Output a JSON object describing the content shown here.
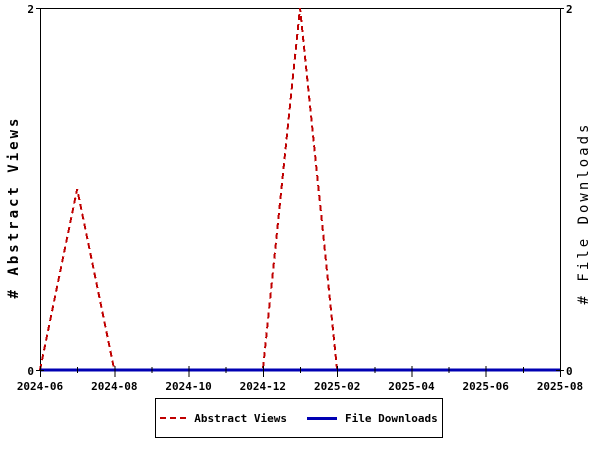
{
  "chart_data": {
    "type": "line",
    "title": "",
    "ylabel_left": "# Abstract Views",
    "ylabel_right": "# File Downloads",
    "ylim": [
      0,
      2
    ],
    "y_ticks": [
      0,
      2
    ],
    "y_tick_labels": [
      "0",
      "2"
    ],
    "x": [
      "2024-06",
      "2024-07",
      "2024-08",
      "2024-09",
      "2024-10",
      "2024-11",
      "2024-12",
      "2025-01",
      "2025-02",
      "2025-03",
      "2025-04",
      "2025-05",
      "2025-06",
      "2025-07",
      "2025-08"
    ],
    "x_tick_labels": [
      "2024-06",
      "2024-08",
      "2024-10",
      "2024-12",
      "2025-02",
      "2025-04",
      "2025-06",
      "2025-08"
    ],
    "x_label_every": 2,
    "series": [
      {
        "name": "Abstract Views",
        "color": "#c00000",
        "style": "dashed",
        "values": [
          0,
          1,
          0,
          0,
          0,
          0,
          0,
          2,
          0,
          0,
          0,
          0,
          0,
          0,
          0
        ]
      },
      {
        "name": "File Downloads",
        "color": "#0000b3",
        "style": "solid",
        "values": [
          0,
          0,
          0,
          0,
          0,
          0,
          0,
          0,
          0,
          0,
          0,
          0,
          0,
          0,
          0
        ]
      }
    ],
    "legend_position": "bottom",
    "grid": false,
    "axis_color": "#000000",
    "background": "#ffffff"
  }
}
